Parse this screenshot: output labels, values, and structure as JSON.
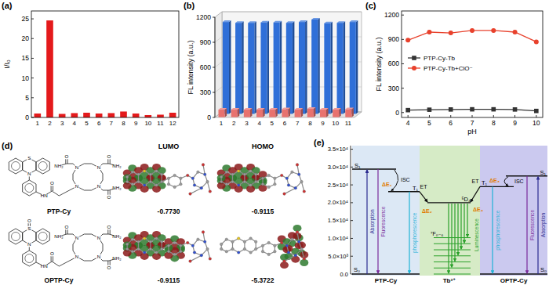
{
  "chart_data": [
    {
      "type": "bar",
      "title": "(a)",
      "y_label": "I/I₀",
      "categories": [
        "1",
        "2",
        "3",
        "4",
        "5",
        "6",
        "7",
        "8",
        "9",
        "10",
        "11",
        "12"
      ],
      "values": [
        1.0,
        24.6,
        0.9,
        1.1,
        1.2,
        1.0,
        1.1,
        1.5,
        1.0,
        0.6,
        0.7,
        1.2
      ],
      "color": "#e41a1c",
      "ylim": [
        0,
        27
      ],
      "yticks": [
        0,
        5,
        10,
        15,
        20,
        25
      ]
    },
    {
      "type": "bar",
      "title": "(b)",
      "y_label": "FL intensity (a.u.)",
      "categories": [
        "1",
        "2",
        "3",
        "4",
        "5",
        "6",
        "7",
        "8",
        "9",
        "10",
        "11"
      ],
      "series": [
        {
          "color": "#2f6fd8",
          "values": [
            1100,
            1090,
            1090,
            1095,
            1095,
            1090,
            1100,
            1130,
            1085,
            1090,
            1100
          ]
        },
        {
          "color": "#e8726e",
          "values": [
            90,
            90,
            90,
            90,
            90,
            95,
            90,
            100,
            90,
            90,
            95
          ]
        }
      ],
      "ylim": [
        0,
        1200
      ],
      "yticks": [
        0,
        300,
        600,
        900,
        1200
      ],
      "grid": true
    },
    {
      "type": "line",
      "title": "(c)",
      "x_label": "pH",
      "y_label": "FL intensity (a.u.)",
      "x": [
        4,
        5,
        6,
        7,
        8,
        9,
        10
      ],
      "series": [
        {
          "name": "PTP-Cy-Tb",
          "color": "#333333",
          "marker": "square",
          "values": [
            30,
            35,
            38,
            40,
            40,
            38,
            20
          ]
        },
        {
          "name": "PTP-Cy-Tb+ClO⁻",
          "color": "#e8412c",
          "marker": "circle",
          "values": [
            890,
            990,
            980,
            1010,
            1010,
            990,
            870
          ]
        }
      ],
      "xlim": [
        3.7,
        10.3
      ],
      "ylim": [
        -60,
        1250
      ],
      "xticks": [
        4,
        5,
        6,
        7,
        8,
        9,
        10
      ],
      "yticks": [
        0,
        300,
        600,
        900,
        1200
      ],
      "legend": "left"
    }
  ],
  "panel_d": {
    "label": "(d)",
    "headers": [
      "LUMO",
      "HOMO"
    ],
    "molecules": [
      {
        "name": "PTP-Cy",
        "core_atoms": [
          "S",
          "N"
        ],
        "amide_atoms": [
          "O",
          "HN"
        ],
        "ring_atoms": [
          "N",
          "N",
          "N",
          "N"
        ],
        "arms": [
          [
            "O",
            "NH₂"
          ],
          [
            "O",
            "NH₂"
          ],
          [
            "O",
            "NH₂"
          ]
        ],
        "energies": [
          "-0.7730",
          "-0.9115"
        ]
      },
      {
        "name": "OPTP-Cy",
        "core_atoms": [
          "S",
          "N",
          "O"
        ],
        "amide_atoms": [
          "O",
          "HN"
        ],
        "ring_atoms": [
          "N",
          "N",
          "N",
          "N"
        ],
        "arms": [
          [
            "O",
            "NH₂"
          ],
          [
            "O",
            "NH₂"
          ],
          [
            "O",
            "NH₂"
          ]
        ],
        "energies": [
          "-0.9115",
          "-5.3722"
        ]
      }
    ]
  },
  "panel_e": {
    "label": "(e)",
    "ylim": [
      0,
      36000
    ],
    "yticks": [
      {
        "value": 0,
        "label": "0.0"
      },
      {
        "value": 5000,
        "label": "5.0×10³"
      },
      {
        "value": 10000,
        "label": "1.0×10⁴"
      },
      {
        "value": 15000,
        "label": "1.5×10⁴"
      },
      {
        "value": 20000,
        "label": "2.0×10⁴"
      },
      {
        "value": 25000,
        "label": "2.5×10⁴"
      },
      {
        "value": 30000,
        "label": "3.0×10⁴"
      },
      {
        "value": 35000,
        "label": "3.5×10⁴"
      }
    ],
    "columns": [
      {
        "name": "PTP-Cy",
        "color": "#dce8f5",
        "levels": [
          {
            "label": "S₁",
            "value": 29400
          },
          {
            "label": "T₁",
            "value": 23100
          },
          {
            "label": "S₀",
            "value": 0
          }
        ],
        "transitions": [
          "Absorption",
          "Fluorescence",
          "phosphorescence"
        ],
        "isc": "ISC",
        "gaps": [
          "ΔE₁",
          "ΔE₂"
        ]
      },
      {
        "name": "Tb³⁺",
        "color": "#d6ebc6",
        "levels": [
          {
            "label": "⁵D₄",
            "value": 20000
          }
        ],
        "ground": {
          "label": "⁷F₀₋₆",
          "values": [
            0,
            1700,
            3400,
            5100,
            6800,
            8500,
            10200
          ]
        },
        "transitions": [
          "Luminescence"
        ]
      },
      {
        "name": "OPTP-Cy",
        "color": "#cbc9ef",
        "levels": [
          {
            "label": "S₁",
            "value": 27500
          },
          {
            "label": "T₁",
            "value": 24500
          },
          {
            "label": "S₀",
            "value": 0
          }
        ],
        "transitions": [
          "Absorption",
          "Fluorescence",
          "phosphorescence"
        ],
        "isc": "ISC",
        "gaps": [
          "ΔE₃",
          "ΔE₄"
        ]
      }
    ],
    "transfer": [
      "ET",
      "ET"
    ]
  }
}
